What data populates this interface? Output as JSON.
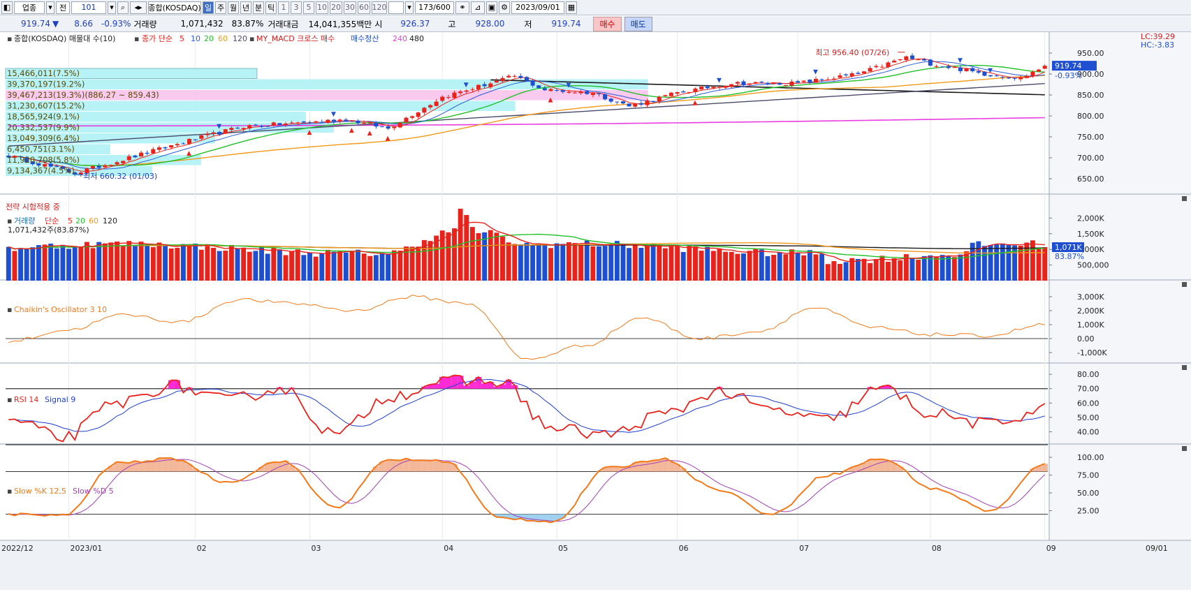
{
  "toolbar": {
    "market": "업종",
    "mode": "전",
    "code": "101",
    "name": "종합(KOSDAQ)",
    "periods": [
      "일",
      "주",
      "월",
      "년",
      "분",
      "틱"
    ],
    "minutes": [
      "1",
      "3",
      "5",
      "10",
      "20",
      "30",
      "60",
      "120"
    ],
    "count": "173/600",
    "date": "2023/09/01"
  },
  "quote": {
    "price": "919.74",
    "arrow": "▼",
    "change": "8.66",
    "change_pct": "-0.93%",
    "volume_label": "거래량",
    "volume": "1,071,432",
    "volume_pct": "83.87%",
    "amount_label": "거래대금",
    "amount": "14,041,355백만",
    "open_label": "시",
    "open": "926.37",
    "high_label": "고",
    "high": "928.00",
    "low_label": "저",
    "low": "919.74",
    "buy": "매수",
    "sell": "매도"
  },
  "colors": {
    "up": "#e8231c",
    "down": "#1f4fd1",
    "ma5": "#e8231c",
    "ma10": "#2a5bd7",
    "ma20": "#22c12a",
    "ma60": "#f2991a",
    "ma120": "#4a4a6a",
    "ma240": "#e83de0",
    "ma480": "#1a1a1a",
    "profile_cyan": "#b7f3f6",
    "profile_pink": "#f9c9ee",
    "stoch_fill": "#f3b89a",
    "rsi_fill": "#ff2ad4"
  },
  "price_pane": {
    "legend": {
      "title": "종합(KOSDAQ) 매물대 수(10)",
      "ma_label": "종가 단순",
      "ma_periods": [
        "5",
        "10",
        "20",
        "60",
        "120"
      ],
      "macd": "MY_MACD 크로스 매수",
      "clear": "매수청산",
      "long1": "240",
      "long2": "480"
    },
    "corner_lc": "LC:39.29",
    "corner_hc": "HC:-3.83",
    "current_price": "919.74",
    "current_pct": "-0.93%",
    "high_note": "최고 956.40 (07/26)",
    "low_note": "최저 660.32 (01/03)",
    "strategy_note": "전략 시험적용 중",
    "yticks": [
      950,
      900,
      850,
      800,
      750,
      700,
      650
    ],
    "ytick_labels": [
      "950.00",
      "900.00",
      "850.00",
      "800.00",
      "750.00",
      "700.00",
      "650.00"
    ],
    "profile": [
      {
        "label": "15,466,011(7.5%)",
        "kind": "cyan",
        "frac": 0.36
      },
      {
        "label": "39,370,197(19.2%)",
        "kind": "cyan",
        "frac": 0.92
      },
      {
        "label": "39,467,213(19.3%)(886.27 ~ 859.43)",
        "kind": "pink",
        "frac": 0.92
      },
      {
        "label": "31,230,607(15.2%)",
        "kind": "cyan",
        "frac": 0.73
      },
      {
        "label": "18,565,924(9.1%)",
        "kind": "cyan",
        "frac": 0.43
      },
      {
        "label": "20,332,537(9.9%)",
        "kind": "cyan",
        "frac": 0.47
      },
      {
        "label": "13,049,309(6.4%)",
        "kind": "cyan",
        "frac": 0.3
      },
      {
        "label": "6,450,751(3.1%)",
        "kind": "cyan",
        "frac": 0.15
      },
      {
        "label": "11,920,708(5.8%)",
        "kind": "cyan",
        "frac": 0.28
      },
      {
        "label": "9,134,367(4.5%)",
        "kind": "cyan",
        "frac": 0.21
      }
    ]
  },
  "volume_pane": {
    "legend": {
      "title": "거래량",
      "ma_label": "단순",
      "p5": "5",
      "p20": "20",
      "p60": "60",
      "p120": "120"
    },
    "summary": "1,071,432주(83.87%)",
    "yticks": [
      2000,
      1500,
      1000,
      500
    ],
    "ytick_labels": [
      "2,000K",
      "1,500K",
      "1,000K",
      "500,000"
    ],
    "current": "1,071K",
    "current_pct": "83.87%"
  },
  "chaikin_pane": {
    "legend": "Chaikin's Oscillator 3 10",
    "yticks": [
      3000,
      2000,
      1000,
      0,
      -1000
    ],
    "ytick_labels": [
      "3,000K",
      "2,000K",
      "1,000K",
      "0.00",
      "-1,000K"
    ]
  },
  "rsi_pane": {
    "legend_rsi": "RSI 14",
    "legend_signal": "Signal 9",
    "yticks": [
      80,
      70,
      60,
      50,
      40
    ],
    "ytick_labels": [
      "80.00",
      "70.00",
      "60.00",
      "50.00",
      "40.00"
    ]
  },
  "stoch_pane": {
    "legend_k": "Slow %K 12,5",
    "legend_d": "Slow %D 5",
    "yticks": [
      100,
      75,
      50,
      25
    ],
    "ytick_labels": [
      "100.00",
      "75.00",
      "50.00",
      "25.00"
    ]
  },
  "x_axis": {
    "labels": [
      "2022/12",
      "2023/01",
      "02",
      "03",
      "04",
      "05",
      "06",
      "07",
      "08",
      "09",
      "09/01"
    ]
  },
  "chart_data": {
    "type": "candlestick",
    "title": "종합(KOSDAQ)",
    "x_range": [
      "2022/12",
      "2023/09/01"
    ],
    "price_ylim": [
      620,
      990
    ],
    "anchors": [
      {
        "date": "2023/01/03",
        "close": 663
      },
      {
        "date": "2023/01/16",
        "close": 700
      },
      {
        "date": "2023/02/01",
        "close": 745
      },
      {
        "date": "2023/02/14",
        "close": 775
      },
      {
        "date": "2023/03/01",
        "close": 785
      },
      {
        "date": "2023/03/10",
        "close": 792
      },
      {
        "date": "2023/03/20",
        "close": 770
      },
      {
        "date": "2023/04/01",
        "close": 845
      },
      {
        "date": "2023/04/20",
        "close": 895
      },
      {
        "date": "2023/04/28",
        "close": 862
      },
      {
        "date": "2023/05/10",
        "close": 855
      },
      {
        "date": "2023/05/20",
        "close": 823
      },
      {
        "date": "2023/06/01",
        "close": 855
      },
      {
        "date": "2023/06/15",
        "close": 878
      },
      {
        "date": "2023/07/01",
        "close": 878
      },
      {
        "date": "2023/07/15",
        "close": 900
      },
      {
        "date": "2023/07/26",
        "close": 940
      },
      {
        "date": "2023/08/01",
        "close": 925
      },
      {
        "date": "2023/08/15",
        "close": 900
      },
      {
        "date": "2023/08/25",
        "close": 890
      },
      {
        "date": "2023/09/01",
        "close": 919.74
      }
    ],
    "chaikin_anchors": [
      -200,
      600,
      1700,
      1200,
      2800,
      2500,
      2000,
      3000,
      2500,
      -1500,
      -500,
      1500,
      0,
      500,
      2200,
      800,
      300,
      200,
      1000
    ],
    "rsi_anchors": [
      48,
      36,
      60,
      72,
      62,
      70,
      38,
      65,
      75,
      75,
      42,
      38,
      52,
      68,
      55,
      48,
      70,
      52,
      45,
      56
    ],
    "stoch_anchors": [
      20,
      18,
      92,
      98,
      65,
      95,
      30,
      97,
      95,
      15,
      10,
      85,
      98,
      55,
      20,
      75,
      98,
      55,
      25,
      90
    ]
  }
}
